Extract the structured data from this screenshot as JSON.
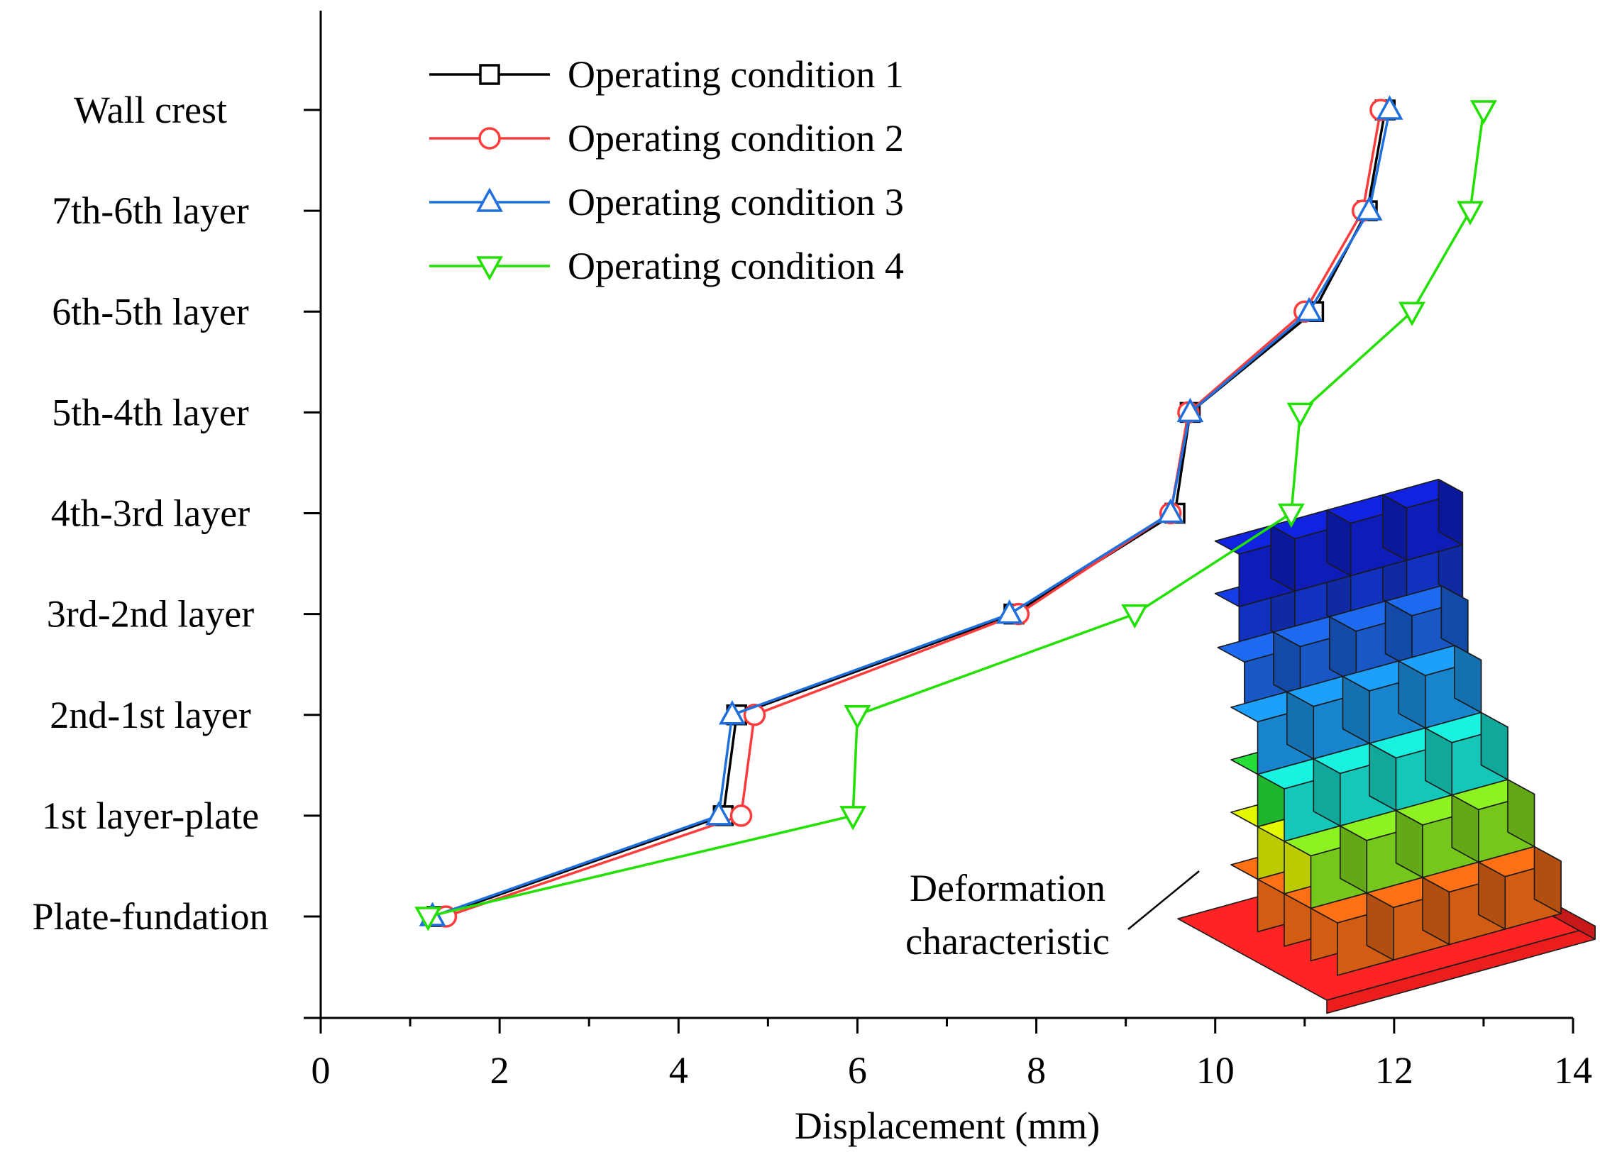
{
  "chart_data": {
    "type": "line",
    "orientation": "horizontal-value",
    "title": "",
    "xlabel": "Displacement (mm)",
    "ylabel": "",
    "xlim": [
      0,
      14
    ],
    "x_ticks": [
      0,
      2,
      4,
      6,
      8,
      10,
      12,
      14
    ],
    "x_minor_step": 1,
    "categories": [
      "Plate-fundation",
      "1st layer-plate",
      "2nd-1st layer",
      "3rd-2nd layer",
      "4th-3rd layer",
      "5th-4th layer",
      "6th-5th layer",
      "7th-6th layer",
      "Wall crest"
    ],
    "grid": false,
    "legend_position": "top-left",
    "series": [
      {
        "name": "Operating condition 1",
        "color": "#000000",
        "marker": "square",
        "values": [
          1.3,
          4.5,
          4.65,
          7.75,
          9.55,
          9.72,
          11.1,
          11.7,
          11.9
        ]
      },
      {
        "name": "Operating condition 2",
        "color": "#ff3b3b",
        "marker": "circle",
        "values": [
          1.4,
          4.7,
          4.85,
          7.8,
          9.5,
          9.7,
          11.0,
          11.65,
          11.85
        ]
      },
      {
        "name": "Operating condition 3",
        "color": "#1f6fdc",
        "marker": "triangle-up",
        "values": [
          1.25,
          4.45,
          4.6,
          7.7,
          9.5,
          9.72,
          11.05,
          11.72,
          11.95
        ]
      },
      {
        "name": "Operating condition 4",
        "color": "#22e000",
        "marker": "triangle-down",
        "values": [
          1.2,
          5.95,
          6.0,
          9.1,
          10.85,
          10.95,
          12.2,
          12.85,
          13.0
        ]
      }
    ],
    "annotation": {
      "lines": [
        "Deformation",
        "characteristic"
      ]
    }
  }
}
